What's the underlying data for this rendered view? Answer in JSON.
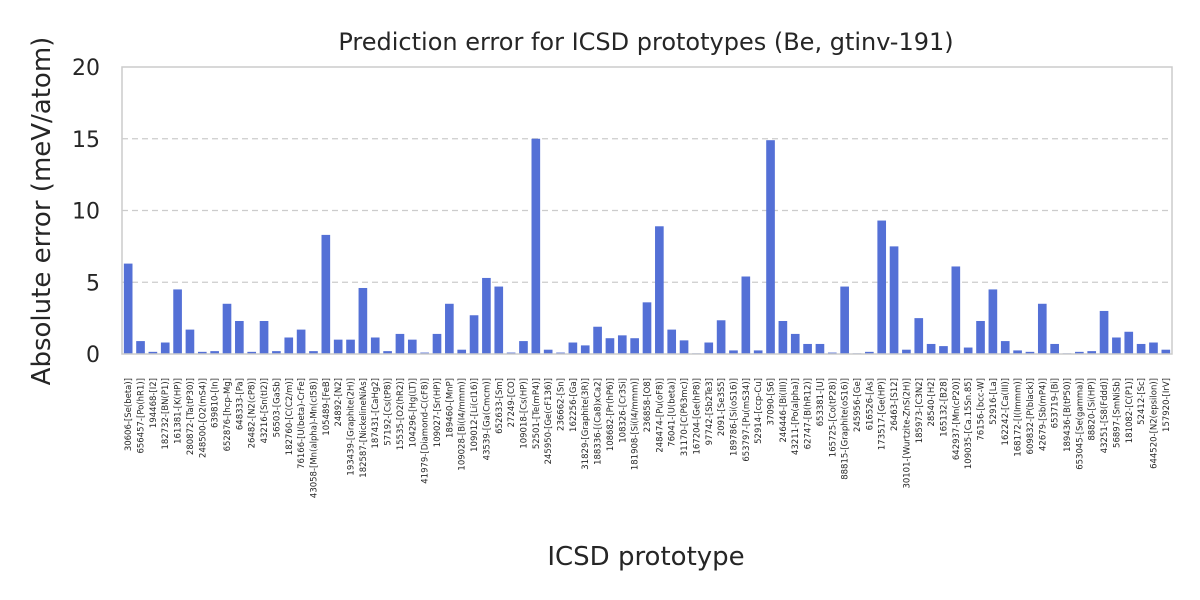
{
  "chart_data": {
    "type": "bar",
    "title": "Prediction error for ICSD prototypes (Be, gtinv-191)",
    "xlabel": "ICSD prototype",
    "ylabel": "Absolute error (meV/atom)",
    "ylim": [
      0,
      20
    ],
    "yticks": [
      0,
      5,
      10,
      15,
      20
    ],
    "grid": "y-dashed",
    "bar_color": "#5470d6",
    "categories": [
      "30606-[Se(beta)]",
      "656457-[Po(hR1)]",
      "194468-[I2]",
      "182732-[BN(P1)]",
      "161381-[K(HP)]",
      "280872-[Ta(tP30)]",
      "248500-[O2(mS4)]",
      "639810-[In]",
      "652876-[hcp-Mg]",
      "648333-[Pa]",
      "26482-[N2(cP8)]",
      "43216-[Sn(tI2)]",
      "56503-[GaSb]",
      "182760-[C(C2/m)]",
      "76166-[U(beta)-CrFe]",
      "43058-[Mn(alpha)-Mn(cI58)]",
      "105489-[FeB]",
      "24892-[N2]",
      "193439-[Graphite(2H)]",
      "182587-[NickelineNiAs]",
      "187431-[CaHg2]",
      "57192-[Cs(tP8)]",
      "15535-[O2(hR2)]",
      "104296-[Hg(LT)]",
      "41979-[Diamond-C(cF8)]",
      "109027-[Sr(HP)]",
      "189460-[MnP]",
      "109028-[Bi(I4/mmm)]",
      "109012-[Li(cI16)]",
      "43539-[Ga(Cmcm)]",
      "652633-[Sm]",
      "27249-[CO]",
      "109018-[Cs(HP)]",
      "52501-[Te(mP4)]",
      "245950-[Ge(cF136)]",
      "236662-[Sn]",
      "162256-[Ga]",
      "31829-[Graphite(3R)]",
      "188336-[(Ca8)xCa2]",
      "108682-[Pr(hP6)]",
      "108326-[Cr3Si]",
      "181908-[Si(I4/mmm)]",
      "236858-[O8]",
      "248474-[Pu(oF8)]",
      "76041-[U(beta)]",
      "31170-[C(P63mc)]",
      "167204-[Ge(hP8)]",
      "97742-[Sb2Te3]",
      "2091-[Se3S5]",
      "189786-[Si(oS16)]",
      "653797-[Pu(mS34)]",
      "52914-[ccp-Cu]",
      "37090-[S6]",
      "246446-[Bi(III)]",
      "43211-[Po(alpha)]",
      "62747-[B(hR12)]",
      "653381-[U]",
      "165725-[Co(tP28)]",
      "88815-[Graphite(oS16)]",
      "245956-[Ge]",
      "616526-[As]",
      "173517-[Ge(HP)]",
      "26463-[S12]",
      "30101-[Wurtzite-ZnS(2H)]",
      "185973-[C3N2]",
      "28540-[H2]",
      "165132-[B28]",
      "642937-[Mn(cP20)]",
      "109035-[Ca.15Sn.85]",
      "76156-[bcc-W]",
      "52916-[La]",
      "162242-[Ca(III)]",
      "168172-[I(Immm)]",
      "609832-[P(black)]",
      "42679-[Sb(mP4)]",
      "653719-[Bi]",
      "189436-[B(tP50)]",
      "653045-[Se(gamma)]",
      "88820-[Si(HP)]",
      "43251-[S8(Fddd)]",
      "56897-[SmNiSb]",
      "181082-[C(P1)]",
      "52412-[Sc]",
      "644520-[N2(epsilon)]",
      "157920-[IrV]"
    ],
    "values": [
      6.3,
      0.9,
      0.15,
      0.8,
      4.5,
      1.7,
      0.15,
      0.2,
      3.5,
      2.3,
      0.15,
      2.3,
      0.2,
      1.15,
      1.7,
      0.2,
      8.3,
      1.0,
      1.0,
      4.6,
      1.15,
      0.2,
      1.4,
      1.0,
      0.1,
      1.4,
      3.5,
      0.3,
      2.7,
      5.3,
      4.7,
      0.1,
      0.9,
      15.0,
      0.3,
      0.1,
      0.8,
      0.6,
      1.9,
      1.1,
      1.3,
      1.1,
      3.6,
      8.9,
      1.7,
      0.95,
      0.05,
      0.8,
      2.35,
      0.25,
      5.4,
      0.25,
      14.9,
      2.3,
      1.4,
      0.7,
      0.7,
      0.1,
      4.7,
      0.05,
      0.15,
      9.3,
      7.5,
      0.3,
      2.5,
      0.7,
      0.55,
      6.1,
      0.45,
      2.3,
      4.5,
      0.9,
      0.25,
      0.15,
      3.5,
      0.7,
      0.05,
      0.15,
      0.2,
      3.0,
      1.15,
      1.55,
      0.7,
      0.8,
      0.3
    ]
  }
}
